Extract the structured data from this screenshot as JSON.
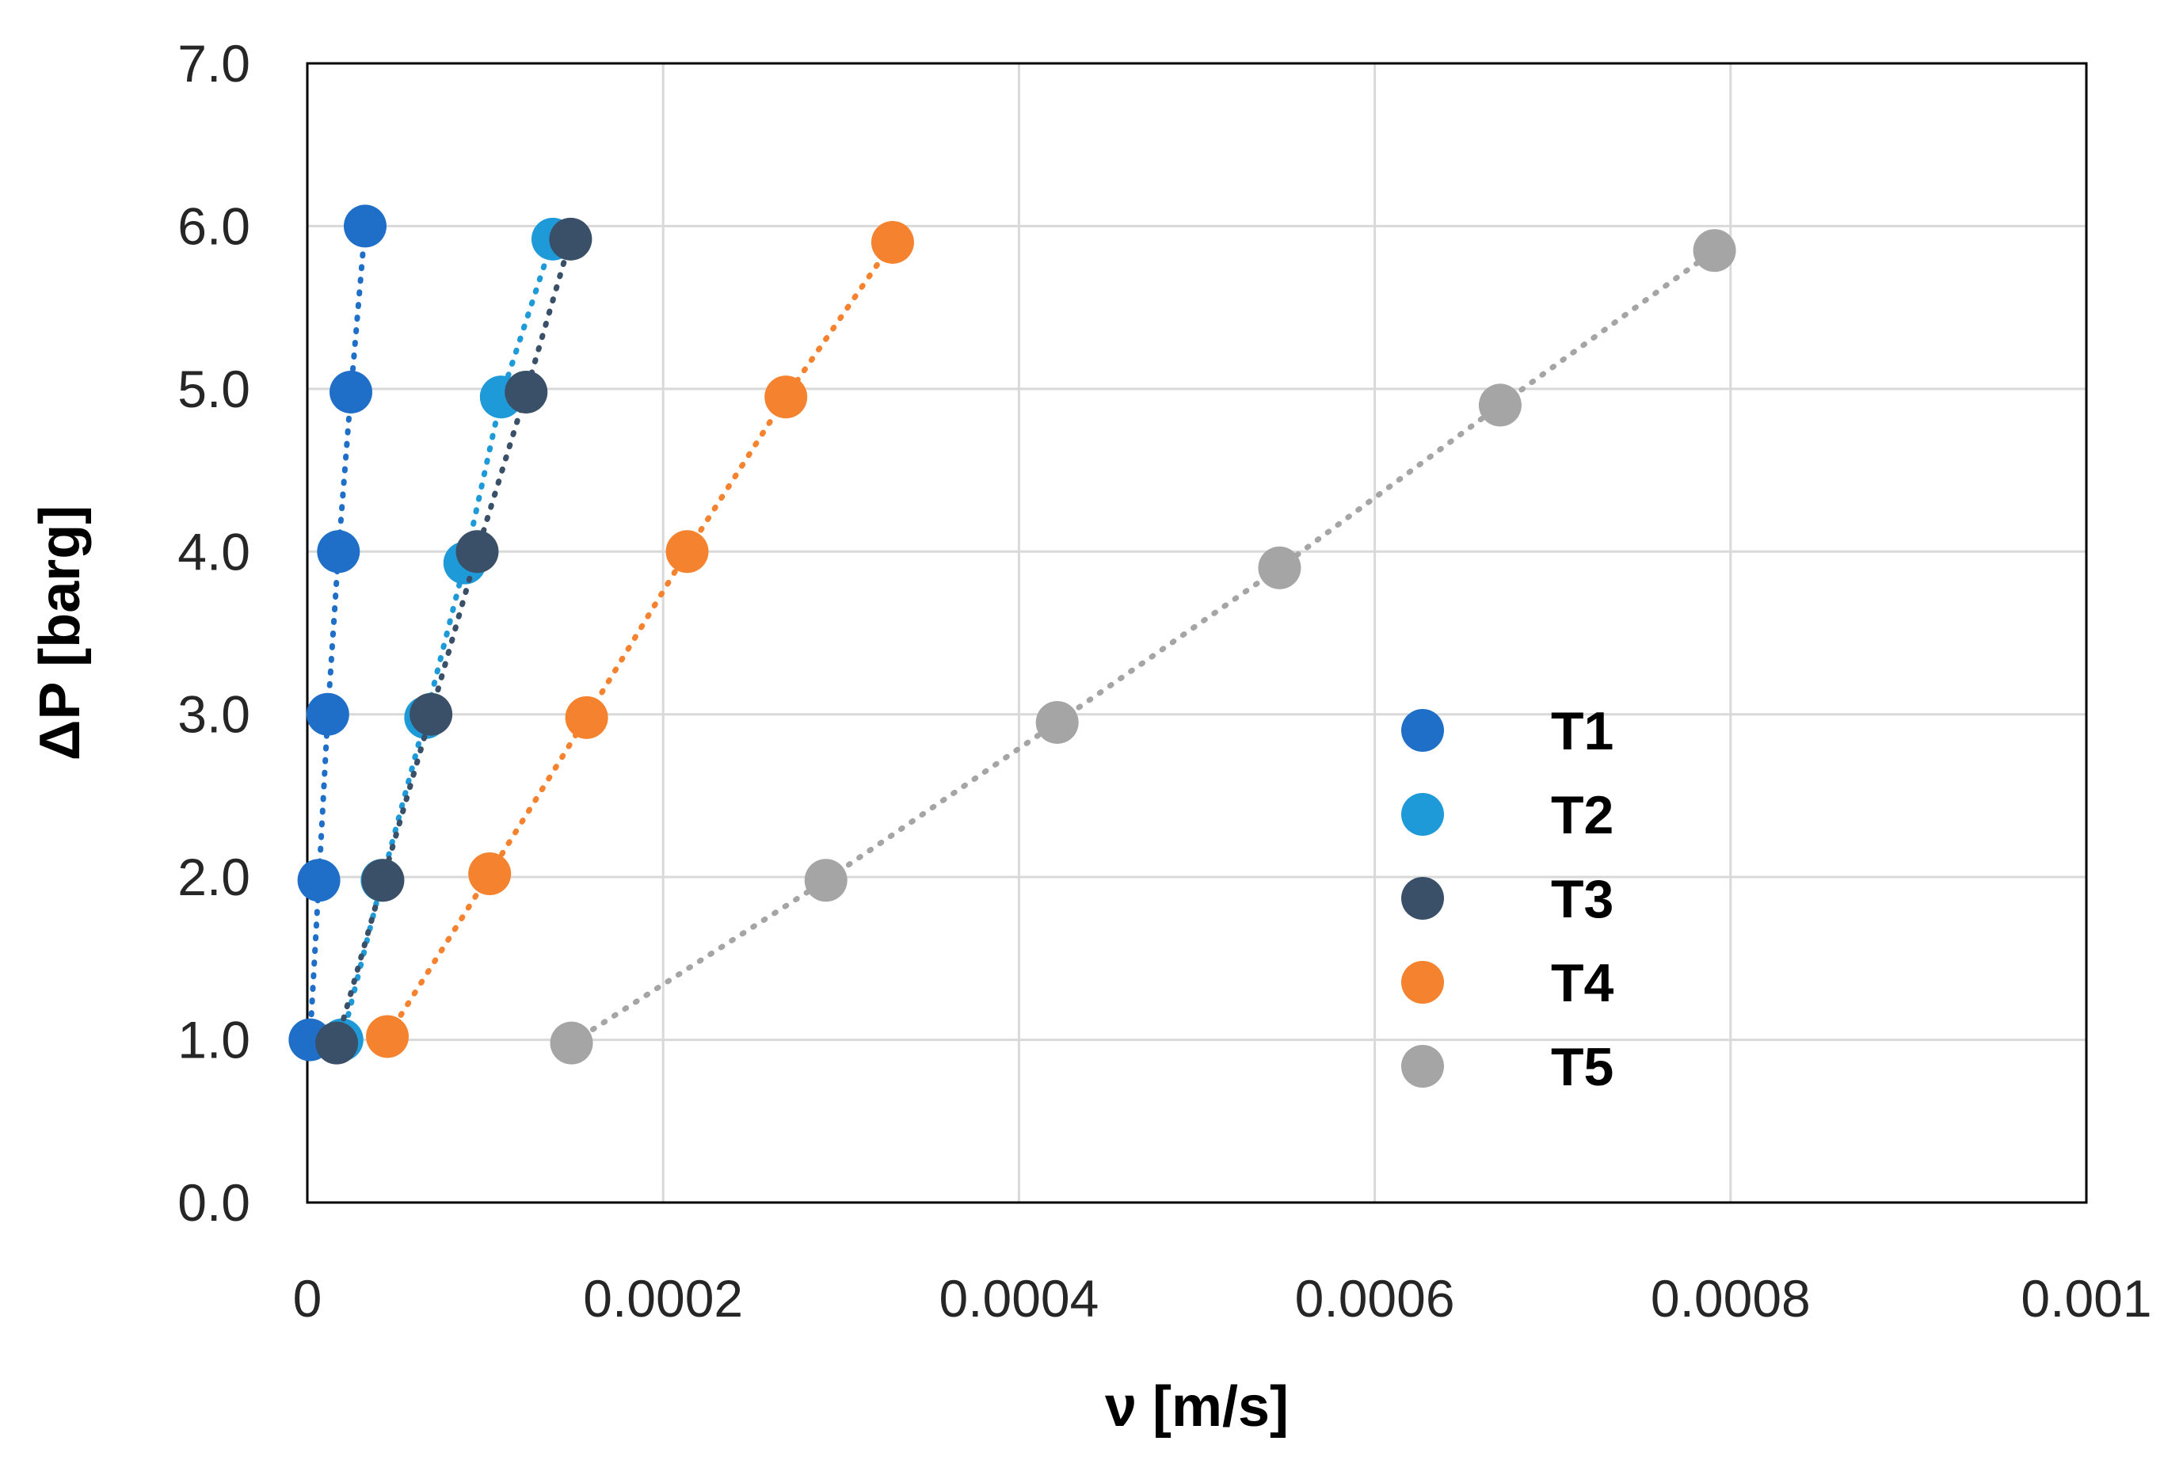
{
  "chart_data": {
    "type": "scatter",
    "title": "",
    "xlabel": "ν [m/s]",
    "ylabel": "ΔP [barg]",
    "xlim": [
      0,
      0.001
    ],
    "ylim": [
      0,
      7.0
    ],
    "xticks": [
      0,
      0.0002,
      0.0004,
      0.0006,
      0.0008,
      0.001
    ],
    "xtick_labels": [
      "0",
      "0.0002",
      "0.0004",
      "0.0006",
      "0.0008",
      "0.001"
    ],
    "yticks": [
      0,
      1,
      2,
      3,
      4,
      5,
      6,
      7
    ],
    "ytick_labels": [
      "0.0",
      "1.0",
      "2.0",
      "3.0",
      "4.0",
      "5.0",
      "6.0",
      "7.0"
    ],
    "grid": true,
    "legend_position": "right-center",
    "line_style": "dotted",
    "series": [
      {
        "name": "T1",
        "color": "#1f6fc8",
        "x": [
          1.5e-06,
          6.5e-06,
          1.15e-05,
          1.75e-05,
          2.45e-05,
          3.25e-05
        ],
        "y": [
          1.0,
          1.98,
          3.0,
          4.0,
          4.98,
          6.0
        ]
      },
      {
        "name": "T2",
        "color": "#1f9ad8",
        "x": [
          1.95e-05,
          4.2e-05,
          6.65e-05,
          8.85e-05,
          0.000109,
          0.000138
        ],
        "y": [
          1.0,
          1.98,
          2.98,
          3.93,
          4.95,
          5.92
        ]
      },
      {
        "name": "T3",
        "color": "#3a5068",
        "x": [
          1.65e-05,
          4.25e-05,
          6.95e-05,
          9.55e-05,
          0.000123,
          0.000148
        ],
        "y": [
          0.98,
          1.98,
          3.0,
          4.0,
          4.98,
          5.92
        ]
      },
      {
        "name": "T4",
        "color": "#f4822e",
        "x": [
          4.5e-05,
          0.0001025,
          0.000157,
          0.0002135,
          0.000269,
          0.000329
        ],
        "y": [
          1.02,
          2.02,
          2.98,
          4.0,
          4.95,
          5.9
        ]
      },
      {
        "name": "T5",
        "color": "#a5a5a5",
        "x": [
          0.0001485,
          0.0002915,
          0.0004215,
          0.0005465,
          0.0006705,
          0.000791
        ],
        "y": [
          0.98,
          1.98,
          2.95,
          3.9,
          4.9,
          5.85
        ]
      }
    ]
  }
}
